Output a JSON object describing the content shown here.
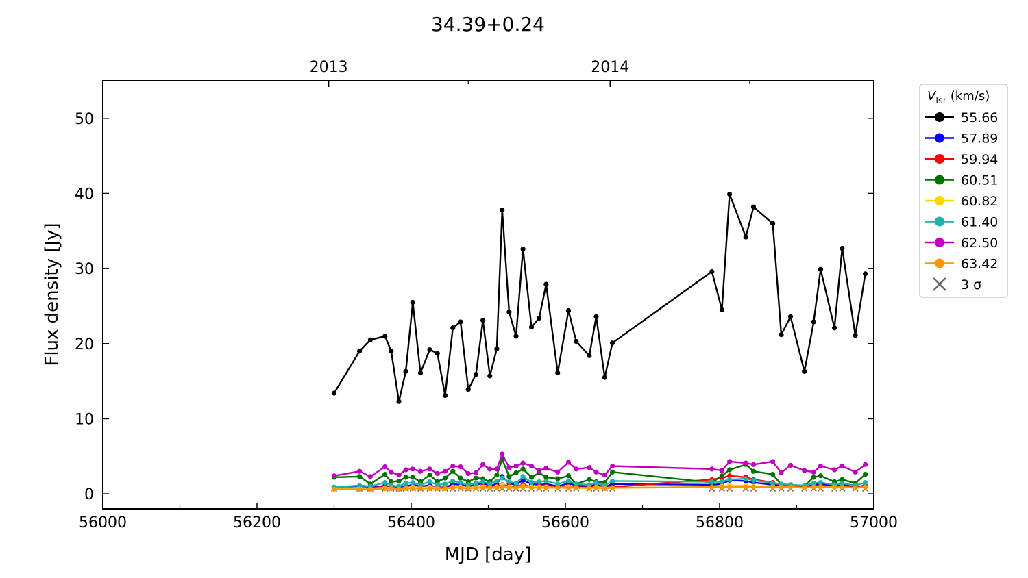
{
  "chart_data": {
    "type": "line",
    "title": "34.39+0.24",
    "xlabel": "MJD [day]",
    "ylabel": "Flux density [Jy]",
    "xlim": [
      56000,
      57000
    ],
    "ylim": [
      -2,
      55
    ],
    "x_ticks": [
      56000,
      56200,
      56400,
      56600,
      56800,
      57000
    ],
    "x_minor_ticks": [
      56100,
      56300,
      56500,
      56700,
      56900
    ],
    "y_ticks": [
      0,
      10,
      20,
      30,
      40,
      50
    ],
    "top_axis_ticks": [
      {
        "x": 56293,
        "label": "2013"
      },
      {
        "x": 56658,
        "label": "2014"
      }
    ],
    "top_axis_minor_ticks": [
      56474,
      56839
    ],
    "grid": false,
    "legend": {
      "position": "outside-right",
      "title_main": "V",
      "title_sub": "lsr",
      "title_rest": " (km/s)",
      "sigma_label": "3 σ",
      "sigma_color": "#666666"
    },
    "x": [
      56300,
      56333,
      56347,
      56366,
      56374,
      56384,
      56393,
      56402,
      56412,
      56424,
      56434,
      56444,
      56454,
      56464,
      56474,
      56484,
      56493,
      56502,
      56511,
      56518,
      56527,
      56536,
      56545,
      56556,
      56566,
      56575,
      56590,
      56604,
      56614,
      56631,
      56640,
      56651,
      56661,
      56790,
      56803,
      56813,
      56834,
      56844,
      56869,
      56880,
      56892,
      56910,
      56922,
      56931,
      56949,
      56959,
      56976,
      56989
    ],
    "series": [
      {
        "name": "55.66",
        "color": "#000000",
        "values": [
          13.4,
          19,
          20.5,
          21,
          19,
          12.3,
          16.3,
          25.5,
          16.1,
          19.2,
          18.7,
          13.1,
          22.1,
          22.9,
          13.9,
          15.9,
          23.1,
          15.7,
          19.3,
          37.8,
          24.2,
          21,
          32.6,
          22.2,
          23.4,
          27.9,
          16.1,
          24.4,
          20.3,
          18.4,
          23.6,
          15.5,
          20.1,
          29.6,
          24.5,
          39.9,
          34.2,
          38.2,
          36,
          21.2,
          23.6,
          16.3,
          22.9,
          29.9,
          22.1,
          32.7,
          21.1,
          29.3
        ]
      },
      {
        "name": "57.89",
        "color": "#0000ff",
        "values": [
          0.8,
          0.9,
          0.8,
          1.1,
          0.9,
          0.8,
          1,
          1.2,
          1,
          1.1,
          0.9,
          0.8,
          1.3,
          1.2,
          1,
          1.2,
          1.4,
          1.1,
          1.3,
          2.3,
          1.4,
          1.2,
          1.8,
          1.3,
          1.2,
          1.3,
          1,
          1.4,
          1.1,
          1,
          1.2,
          0.9,
          1.3,
          1.2,
          1.3,
          1.8,
          1.7,
          1.5,
          1.2,
          1.1,
          1,
          0.9,
          1.2,
          1.3,
          1,
          1.2,
          0.9,
          1.1
        ]
      },
      {
        "name": "59.94",
        "color": "#ff0000",
        "values": [
          0.7,
          0.8,
          0.8,
          0.9,
          0.8,
          0.7,
          0.8,
          0.9,
          0.8,
          0.9,
          0.8,
          0.8,
          0.9,
          0.9,
          0.8,
          0.9,
          1,
          0.9,
          1,
          1.2,
          1,
          0.9,
          1.2,
          0.9,
          1,
          1,
          0.8,
          1,
          0.9,
          0.8,
          1,
          0.8,
          0.9,
          1.9,
          2.1,
          2.4,
          2.2,
          1.9,
          1.5,
          1.2,
          1,
          0.9,
          1,
          1.1,
          0.9,
          1,
          0.8,
          1
        ]
      },
      {
        "name": "60.51",
        "color": "#007000",
        "values": [
          2.2,
          2.3,
          1.3,
          2.6,
          1.6,
          1.7,
          2.2,
          2.2,
          1.6,
          2.5,
          1.6,
          2.1,
          3,
          2.1,
          1.6,
          2.1,
          2,
          1.6,
          2.5,
          4.6,
          2.3,
          2.8,
          3.3,
          2.2,
          2.8,
          2.2,
          2,
          2.4,
          1.3,
          1.9,
          1.6,
          1.5,
          2.9,
          1.5,
          2.4,
          3.2,
          3.9,
          3,
          2.6,
          1.2,
          1.2,
          1,
          2.2,
          2.4,
          1.6,
          1.9,
          1.4,
          2.6
        ]
      },
      {
        "name": "60.82",
        "color": "#ffd700",
        "values": [
          0.7,
          0.8,
          0.7,
          0.8,
          0.8,
          0.7,
          0.8,
          0.9,
          0.8,
          0.9,
          0.8,
          0.7,
          0.9,
          0.9,
          0.8,
          0.9,
          0.9,
          0.8,
          0.9,
          1.1,
          0.9,
          0.8,
          1,
          0.9,
          0.9,
          0.9,
          0.8,
          0.9,
          0.8,
          0.7,
          0.9,
          0.8,
          0.8,
          0.9,
          1,
          1.1,
          1.1,
          1,
          1,
          0.9,
          0.9,
          0.8,
          0.9,
          0.9,
          0.8,
          0.9,
          0.8,
          0.9
        ]
      },
      {
        "name": "61.40",
        "color": "#20b2aa",
        "values": [
          0.9,
          1.1,
          1,
          1.5,
          1.1,
          1,
          1.4,
          1.5,
          1.2,
          1.6,
          1.2,
          1.3,
          1.7,
          1.5,
          1.2,
          1.4,
          1.6,
          1.3,
          1.7,
          2.1,
          1.6,
          1.4,
          2.3,
          1.5,
          1.6,
          1.7,
          1.3,
          1.7,
          1.3,
          1.2,
          1.5,
          1.1,
          1.7,
          1.6,
          1.6,
          1.9,
          2,
          1.8,
          1.4,
          1.3,
          1.2,
          1.1,
          1.4,
          1.5,
          1.2,
          1.4,
          1.1,
          1.5
        ]
      },
      {
        "name": "62.50",
        "color": "#c000c0",
        "values": [
          2.4,
          3,
          2.3,
          3.6,
          2.9,
          2.5,
          3.2,
          3.3,
          3,
          3.3,
          2.7,
          3,
          3.7,
          3.6,
          2.7,
          2.8,
          3.9,
          3.3,
          3.3,
          5.3,
          3.5,
          3.7,
          4.1,
          3.7,
          3.1,
          3.4,
          2.9,
          4.2,
          3.3,
          3.5,
          2.9,
          2.5,
          3.7,
          3.3,
          3.1,
          4.3,
          4.1,
          3.9,
          4.3,
          2.8,
          3.8,
          3.1,
          2.9,
          3.7,
          3.2,
          3.7,
          2.9,
          3.9
        ]
      },
      {
        "name": "63.42",
        "color": "#ff9500",
        "values": [
          0.6,
          0.6,
          0.6,
          0.7,
          0.7,
          0.6,
          0.7,
          0.7,
          0.7,
          0.7,
          0.7,
          0.7,
          0.8,
          0.8,
          0.7,
          0.8,
          0.8,
          0.8,
          0.8,
          0.9,
          0.8,
          0.8,
          0.9,
          0.8,
          0.8,
          0.8,
          0.8,
          0.8,
          0.8,
          0.8,
          0.8,
          0.7,
          0.8,
          0.9,
          0.9,
          0.9,
          0.9,
          0.9,
          0.9,
          0.9,
          0.9,
          0.8,
          0.9,
          0.9,
          0.9,
          0.9,
          0.8,
          0.9
        ]
      }
    ],
    "sigma3": {
      "name": "3 σ",
      "value": 0.7
    }
  }
}
